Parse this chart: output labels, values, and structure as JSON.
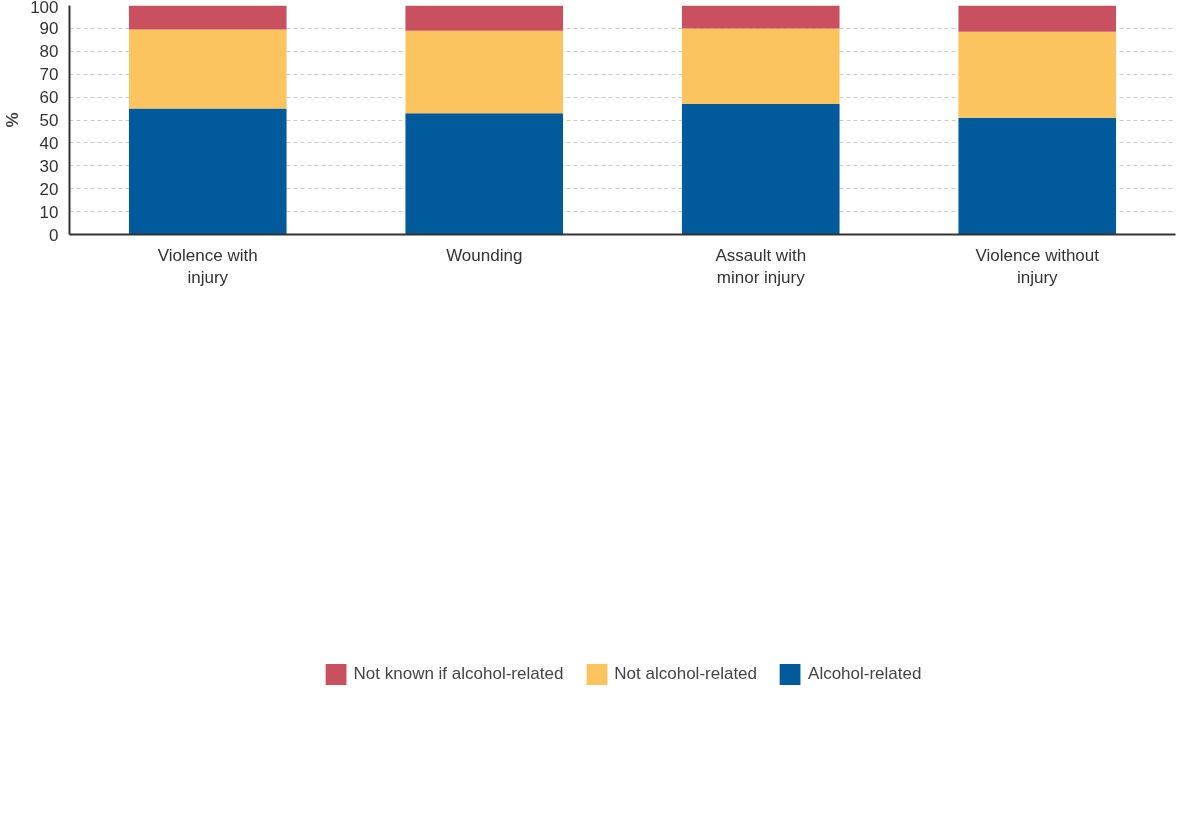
{
  "chart_data": {
    "type": "bar",
    "stacked": true,
    "ylabel": "%",
    "categories": [
      "Violence with injury",
      "Wounding",
      "Assault with minor injury",
      "Violence without injury"
    ],
    "series": [
      {
        "name": "Alcohol-related",
        "color": "#005a9c",
        "values": [
          55,
          53,
          57,
          51
        ]
      },
      {
        "name": "Not alcohol-related",
        "color": "#fcc45f",
        "values": [
          34.5,
          36,
          33,
          37.5
        ]
      },
      {
        "name": "Not known if alcohol-related",
        "color": "#c9505f",
        "values": [
          10.5,
          11,
          10,
          11.5
        ]
      }
    ],
    "ylim": [
      0,
      100
    ],
    "yticks": [
      0,
      10,
      20,
      30,
      40,
      50,
      60,
      70,
      80,
      90,
      100
    ],
    "grid": "y",
    "legend": "bottom"
  }
}
